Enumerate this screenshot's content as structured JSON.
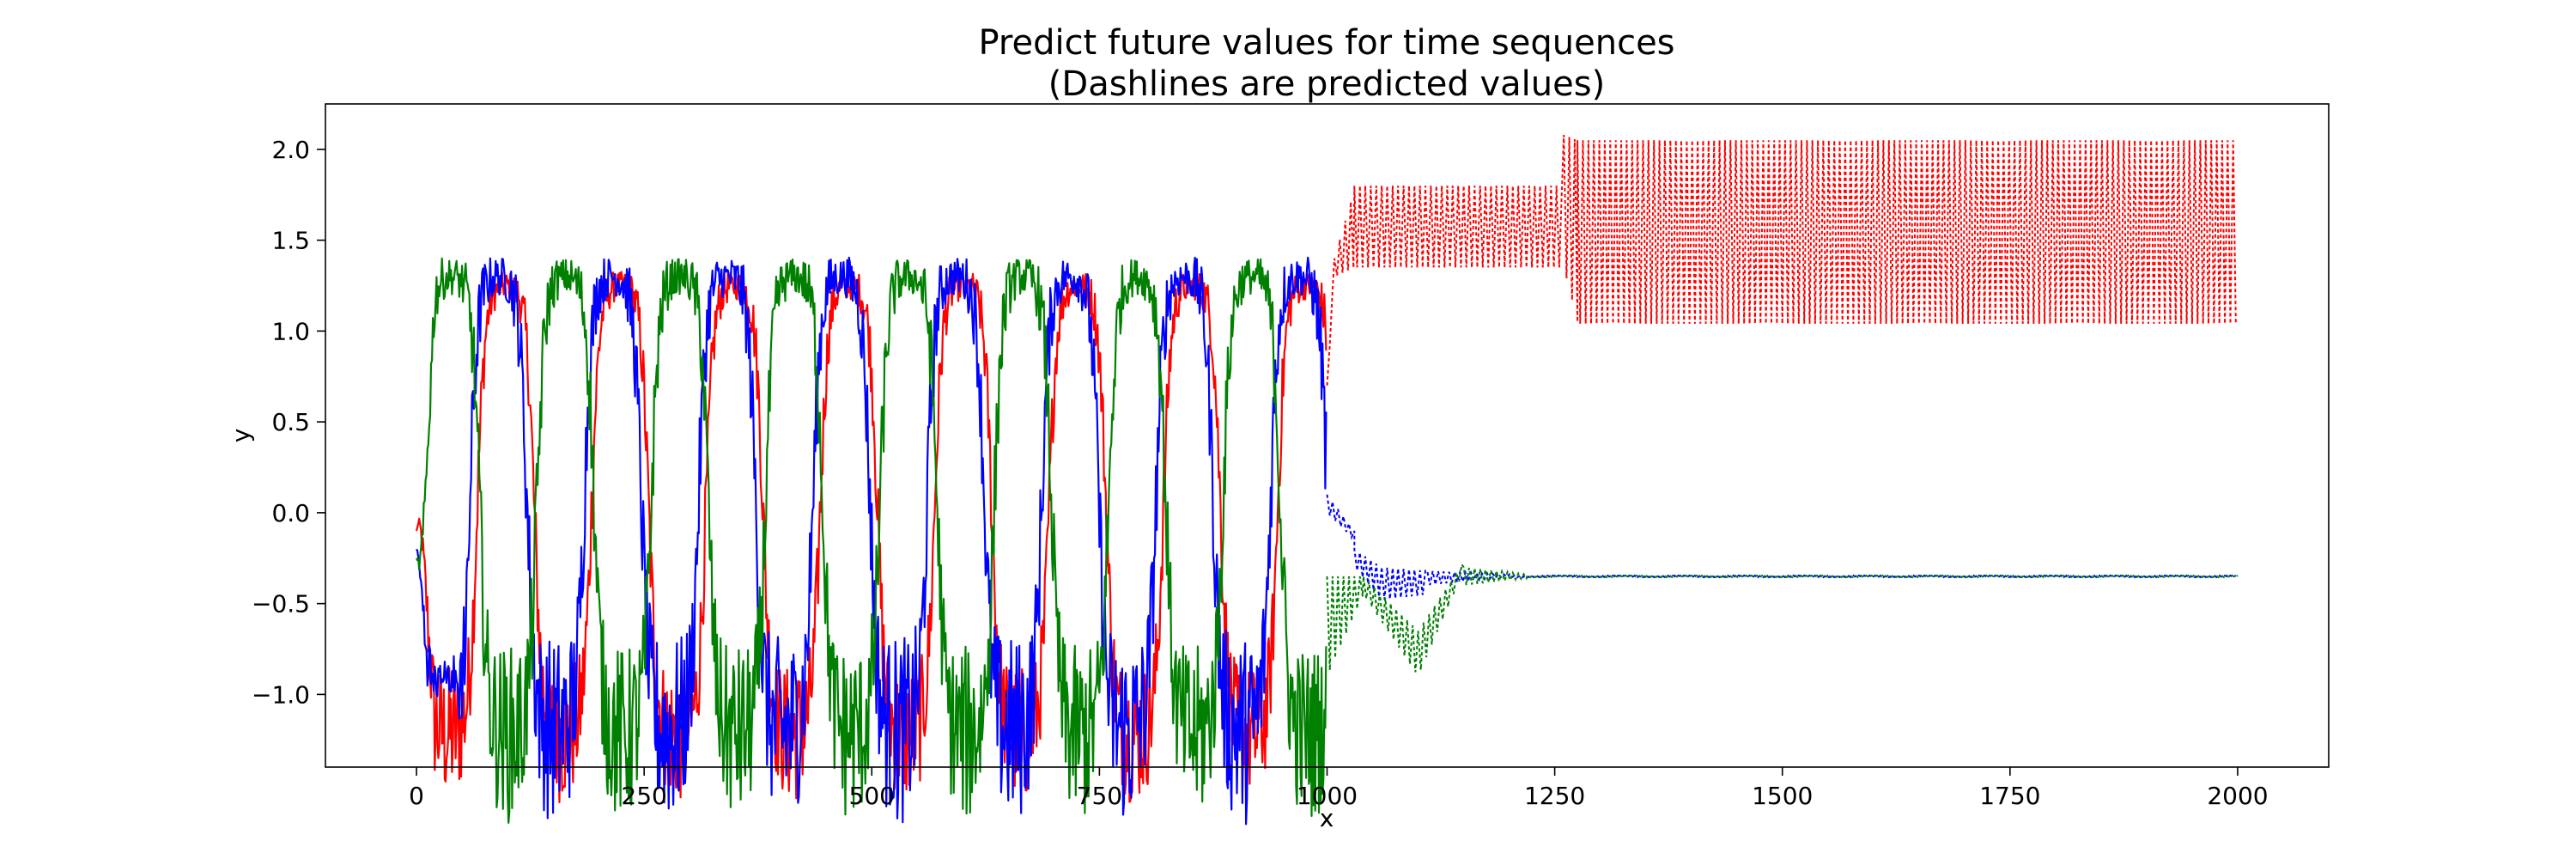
{
  "chart_data": {
    "type": "line",
    "title": "Predict future values for time sequences",
    "subtitle": "(Dashlines are predicted values)",
    "xlabel": "x",
    "ylabel": "y",
    "xlim": [
      -100,
      2100
    ],
    "ylim": [
      -1.4,
      2.25
    ],
    "xticks": [
      0,
      250,
      500,
      750,
      1000,
      1250,
      1500,
      1750,
      2000
    ],
    "yticks": [
      -1.0,
      -0.5,
      0.0,
      0.5,
      1.0,
      1.5,
      2.0
    ],
    "xtick_labels": [
      "0",
      "250",
      "500",
      "750",
      "1000",
      "1250",
      "1500",
      "1750",
      "2000"
    ],
    "ytick_labels": [
      "−1.0",
      "−0.5",
      "0.0",
      "0.5",
      "1.0",
      "1.5",
      "2.0"
    ],
    "grid": false,
    "legend": "none",
    "observed_range": [
      0,
      999
    ],
    "predicted_range": [
      1000,
      2000
    ],
    "series": [
      {
        "color": "#ff0000",
        "style_observed": "solid",
        "style_predicted": "dashed",
        "observed": {
          "period": 125.6,
          "phase_peak_x": 98,
          "peak": 1.25,
          "trough": -1.22,
          "jitter": 0.22,
          "start_y": -0.1
        },
        "predicted_bands": [
          {
            "x": [
              1000,
              1008
            ],
            "low": [
              0.7,
              1.3
            ],
            "high": [
              0.7,
              1.4
            ]
          },
          {
            "x": [
              1008,
              1030
            ],
            "low": [
              1.3,
              1.35
            ],
            "high": [
              1.4,
              1.78
            ]
          },
          {
            "x": [
              1030,
              1260
            ],
            "low": [
              1.35,
              1.35
            ],
            "high": [
              1.8,
              1.8
            ]
          },
          {
            "x": [
              1260,
              1275
            ],
            "low": [
              1.35,
              1.05
            ],
            "high": [
              2.08,
              2.05
            ]
          },
          {
            "x": [
              1275,
              2000
            ],
            "low": [
              1.04,
              1.04
            ],
            "high": [
              2.05,
              2.05
            ]
          }
        ]
      },
      {
        "color": "#0000ff",
        "style_observed": "solid",
        "style_predicted": "dashed",
        "observed": {
          "period": 125.6,
          "phase_peak_x": 90,
          "peak": 1.3,
          "trough": -1.2,
          "jitter": 0.3,
          "start_y": -0.2,
          "first_dip": -0.85
        },
        "predicted_bands": [
          {
            "x": [
              1000,
              1030
            ],
            "low": [
              0.0,
              -0.15
            ],
            "high": [
              0.1,
              -0.1
            ]
          },
          {
            "x": [
              1030,
              1060
            ],
            "low": [
              -0.3,
              -0.48
            ],
            "high": [
              -0.2,
              -0.3
            ]
          },
          {
            "x": [
              1060,
              1110
            ],
            "low": [
              -0.48,
              -0.45
            ],
            "high": [
              -0.3,
              -0.32
            ]
          },
          {
            "x": [
              1110,
              1200
            ],
            "low": [
              -0.4,
              -0.35
            ],
            "high": [
              -0.32,
              -0.34
            ]
          },
          {
            "x": [
              1200,
              2000
            ],
            "low": [
              -0.355,
              -0.355
            ],
            "high": [
              -0.345,
              -0.345
            ]
          }
        ]
      },
      {
        "color": "#008000",
        "style_observed": "solid",
        "style_predicted": "dashed",
        "observed": {
          "period": 125.6,
          "phase_peak_x": 38,
          "peak": 1.3,
          "trough": -1.22,
          "jitter": 0.28,
          "start_y": -0.25
        },
        "predicted_bands": [
          {
            "x": [
              1000,
              1040
            ],
            "low": [
              -0.9,
              -0.45
            ],
            "high": [
              -0.35,
              -0.35
            ]
          },
          {
            "x": [
              1040,
              1100
            ],
            "low": [
              -0.45,
              -0.9
            ],
            "high": [
              -0.35,
              -0.65
            ]
          },
          {
            "x": [
              1100,
              1150
            ],
            "low": [
              -0.9,
              -0.32
            ],
            "high": [
              -0.65,
              -0.27
            ]
          },
          {
            "x": [
              1150,
              1220
            ],
            "low": [
              -0.4,
              -0.36
            ],
            "high": [
              -0.3,
              -0.34
            ]
          },
          {
            "x": [
              1220,
              2000
            ],
            "low": [
              -0.355,
              -0.355
            ],
            "high": [
              -0.345,
              -0.345
            ]
          }
        ]
      }
    ]
  }
}
